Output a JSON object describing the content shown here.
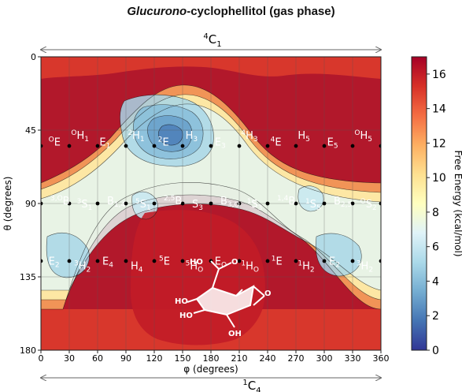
{
  "chart_data": {
    "type": "heatmap",
    "title_italic": "Glucurono",
    "title_rest": "-cyclophellitol (gas phase)",
    "xlabel": "φ (degrees)",
    "ylabel": "θ (degrees)",
    "colorbar_label": "Free Energy (kcal/mol)",
    "xlim": [
      0,
      360
    ],
    "ylim": [
      0,
      180
    ],
    "x_ticks": [
      0,
      30,
      60,
      90,
      120,
      150,
      180,
      210,
      240,
      270,
      300,
      330,
      360
    ],
    "y_ticks": [
      0,
      45,
      90,
      135,
      180
    ],
    "colorbar_ticks": [
      0,
      2,
      4,
      6,
      8,
      10,
      12,
      14,
      16
    ],
    "colorbar_range": [
      0,
      17
    ],
    "conformation_top": {
      "sup": "4",
      "base": "C",
      "sub": "1"
    },
    "conformation_bottom": {
      "sup": "1",
      "base": "C",
      "sub": "4"
    },
    "colormap": [
      "#313695",
      "#4575b4",
      "#74add1",
      "#abd9e9",
      "#e0f3f8",
      "#ffffbf",
      "#fee090",
      "#fdae61",
      "#f46d43",
      "#d73027",
      "#a50026"
    ],
    "minima": [
      {
        "phi": 210,
        "theta": 52,
        "energy": 1.5
      },
      {
        "phi": 165,
        "theta": 50,
        "energy": 3.5
      },
      {
        "phi": 200,
        "theta": 35,
        "energy": 4.0
      },
      {
        "phi": 258,
        "theta": 52,
        "energy": 4.5
      },
      {
        "phi": 108,
        "theta": 98,
        "energy": 5.0
      },
      {
        "phi": 35,
        "theta": 128,
        "energy": 5.0
      },
      {
        "phi": 72,
        "theta": 130,
        "energy": 6.0
      },
      {
        "phi": 342,
        "theta": 128,
        "energy": 5.0
      },
      {
        "phi": 322,
        "theta": 98,
        "energy": 6.0
      },
      {
        "phi": 268,
        "theta": 90,
        "energy": 7.0
      }
    ],
    "labels": [
      {
        "pre": "O",
        "base": "E",
        "sub": "",
        "phi": 8,
        "theta": 52
      },
      {
        "pre": "O",
        "base": "H",
        "sub": "1",
        "phi": 32,
        "theta": 48
      },
      {
        "pre": "",
        "base": "E",
        "sub": "1",
        "phi": 62,
        "theta": 52
      },
      {
        "pre": "2",
        "base": "H",
        "sub": "1",
        "phi": 92,
        "theta": 48
      },
      {
        "pre": "2",
        "base": "E",
        "sub": "",
        "phi": 124,
        "theta": 52
      },
      {
        "pre": "",
        "base": "H",
        "sub": "3",
        "phi": 153,
        "theta": 48
      },
      {
        "pre": "",
        "base": "E",
        "sub": "3",
        "phi": 184,
        "theta": 52
      },
      {
        "pre": "4",
        "base": "H",
        "sub": "3",
        "phi": 212,
        "theta": 48
      },
      {
        "pre": "4",
        "base": "E",
        "sub": "",
        "phi": 243,
        "theta": 52
      },
      {
        "pre": "",
        "base": "H",
        "sub": "5",
        "phi": 272,
        "theta": 48
      },
      {
        "pre": "",
        "base": "E",
        "sub": "5",
        "phi": 303,
        "theta": 52
      },
      {
        "pre": "O",
        "base": "H",
        "sub": "5",
        "phi": 332,
        "theta": 48
      },
      {
        "pre": "3,O",
        "base": "B",
        "sub": "",
        "phi": 10,
        "theta": 88
      },
      {
        "pre": "3",
        "base": "S",
        "sub": "1",
        "phi": 38,
        "theta": 90
      },
      {
        "pre": "",
        "base": "B",
        "sub": "1,4",
        "phi": 70,
        "theta": 88
      },
      {
        "pre": "5",
        "base": "S",
        "sub": "1",
        "phi": 100,
        "theta": 90
      },
      {
        "pre": "2,5",
        "base": "B",
        "sub": "",
        "phi": 130,
        "theta": 88
      },
      {
        "pre": "",
        "base": "S",
        "sub": "3",
        "phi": 160,
        "theta": 90
      },
      {
        "pre": "",
        "base": "B",
        "sub": "3,O",
        "phi": 190,
        "theta": 88
      },
      {
        "pre": "1",
        "base": "S",
        "sub": "3",
        "phi": 218,
        "theta": 90
      },
      {
        "pre": "1,4",
        "base": "B",
        "sub": "",
        "phi": 250,
        "theta": 88
      },
      {
        "pre": "1",
        "base": "S",
        "sub": "5",
        "phi": 280,
        "theta": 90
      },
      {
        "pre": "",
        "base": "B",
        "sub": "2,5",
        "phi": 310,
        "theta": 88
      },
      {
        "pre": "O",
        "base": "S",
        "sub": "2",
        "phi": 338,
        "theta": 90
      },
      {
        "pre": "",
        "base": "E",
        "sub": "2",
        "phi": 8,
        "theta": 125
      },
      {
        "pre": "3",
        "base": "H",
        "sub": "2",
        "phi": 35,
        "theta": 128
      },
      {
        "pre": "",
        "base": "E",
        "sub": "4",
        "phi": 65,
        "theta": 125
      },
      {
        "pre": "",
        "base": "H",
        "sub": "4",
        "phi": 95,
        "theta": 128
      },
      {
        "pre": "5",
        "base": "E",
        "sub": "",
        "phi": 125,
        "theta": 125
      },
      {
        "pre": "5",
        "base": "H",
        "sub": "O",
        "phi": 153,
        "theta": 128
      },
      {
        "pre": "",
        "base": "E",
        "sub": "O",
        "phi": 184,
        "theta": 125
      },
      {
        "pre": "1",
        "base": "H",
        "sub": "O",
        "phi": 212,
        "theta": 128
      },
      {
        "pre": "1",
        "base": "E",
        "sub": "",
        "phi": 244,
        "theta": 125
      },
      {
        "pre": "1",
        "base": "H",
        "sub": "2",
        "phi": 272,
        "theta": 128
      },
      {
        "pre": "",
        "base": "E",
        "sub": "2",
        "phi": 305,
        "theta": 125
      },
      {
        "pre": "3",
        "base": "H",
        "sub": "2",
        "phi": 334,
        "theta": 128
      }
    ],
    "points": [
      {
        "phi": 0,
        "theta": 54.7
      },
      {
        "phi": 30,
        "theta": 54.7
      },
      {
        "phi": 60,
        "theta": 54.7
      },
      {
        "phi": 90,
        "theta": 54.7
      },
      {
        "phi": 120,
        "theta": 54.7
      },
      {
        "phi": 150,
        "theta": 54.7
      },
      {
        "phi": 180,
        "theta": 54.7
      },
      {
        "phi": 210,
        "theta": 54.7
      },
      {
        "phi": 240,
        "theta": 54.7
      },
      {
        "phi": 270,
        "theta": 54.7
      },
      {
        "phi": 300,
        "theta": 54.7
      },
      {
        "phi": 330,
        "theta": 54.7
      },
      {
        "phi": 360,
        "theta": 54.7
      },
      {
        "phi": 0,
        "theta": 90
      },
      {
        "phi": 30,
        "theta": 90
      },
      {
        "phi": 60,
        "theta": 90
      },
      {
        "phi": 90,
        "theta": 90
      },
      {
        "phi": 120,
        "theta": 90
      },
      {
        "phi": 150,
        "theta": 90
      },
      {
        "phi": 180,
        "theta": 90
      },
      {
        "phi": 210,
        "theta": 90
      },
      {
        "phi": 240,
        "theta": 90
      },
      {
        "phi": 270,
        "theta": 90
      },
      {
        "phi": 300,
        "theta": 90
      },
      {
        "phi": 330,
        "theta": 90
      },
      {
        "phi": 360,
        "theta": 90
      },
      {
        "phi": 0,
        "theta": 125.3
      },
      {
        "phi": 30,
        "theta": 125.3
      },
      {
        "phi": 60,
        "theta": 125.3
      },
      {
        "phi": 90,
        "theta": 125.3
      },
      {
        "phi": 120,
        "theta": 125.3
      },
      {
        "phi": 150,
        "theta": 125.3
      },
      {
        "phi": 180,
        "theta": 125.3
      },
      {
        "phi": 210,
        "theta": 125.3
      },
      {
        "phi": 240,
        "theta": 125.3
      },
      {
        "phi": 270,
        "theta": 125.3
      },
      {
        "phi": 300,
        "theta": 125.3
      },
      {
        "phi": 330,
        "theta": 125.3
      },
      {
        "phi": 360,
        "theta": 125.3
      }
    ],
    "inset_labels": [
      "HO",
      "O",
      "HO",
      "HO",
      "OH",
      "O"
    ],
    "grid": true
  }
}
